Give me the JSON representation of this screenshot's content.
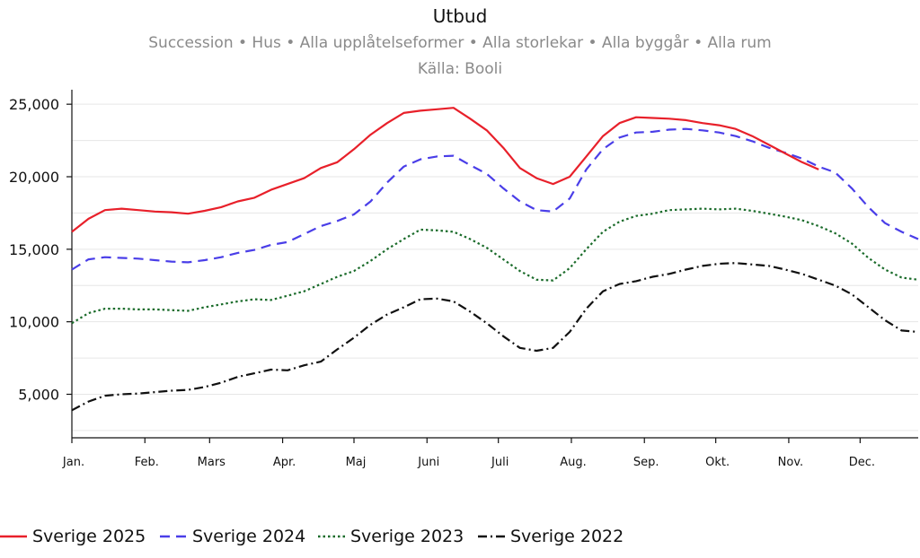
{
  "header": {
    "title": "Utbud",
    "subtitle": "Succession • Hus • Alla upplåtelseformer • Alla storlekar • Alla byggår • Alla rum",
    "source": "Källa: Booli"
  },
  "chart_data": {
    "type": "line",
    "title": "Utbud",
    "xlabel": "",
    "ylabel": "",
    "ylim": [
      2000,
      26000
    ],
    "x_range": [
      1,
      52
    ],
    "yticks": [
      5000,
      10000,
      15000,
      20000,
      25000
    ],
    "ytick_labels": [
      "5,000",
      "10,000",
      "15,000",
      "20,000",
      "25,000"
    ],
    "xticks": [
      {
        "label": "Jan.",
        "week": 1
      },
      {
        "label": "Feb.",
        "week": 5.4
      },
      {
        "label": "Mars",
        "week": 9.3
      },
      {
        "label": "Apr.",
        "week": 13.7
      },
      {
        "label": "Maj",
        "week": 18
      },
      {
        "label": "Juni",
        "week": 22.4
      },
      {
        "label": "Juli",
        "week": 26.7
      },
      {
        "label": "Aug.",
        "week": 31.1
      },
      {
        "label": "Sep.",
        "week": 35.5
      },
      {
        "label": "Okt.",
        "week": 39.8
      },
      {
        "label": "Nov.",
        "week": 44.2
      },
      {
        "label": "Dec.",
        "week": 48.5
      }
    ],
    "grid": "horizontal",
    "legend_position": "bottom",
    "series": [
      {
        "name": "Sverige 2025",
        "color": "#e8202a",
        "dash": "solid",
        "x": [
          1,
          2,
          3,
          4,
          5,
          6,
          7,
          8,
          9,
          10,
          11,
          12,
          13,
          14,
          15,
          16,
          17,
          18,
          19,
          20,
          21,
          22,
          23,
          24,
          25,
          26,
          27,
          28,
          29,
          30,
          31,
          32,
          33,
          34,
          35,
          36,
          37,
          38,
          39,
          40,
          41,
          42,
          43,
          44,
          45,
          46
        ],
        "values": [
          16200,
          17100,
          17700,
          17800,
          17700,
          17600,
          17550,
          17450,
          17650,
          17900,
          18300,
          18550,
          19100,
          19500,
          19900,
          20600,
          21000,
          21900,
          22900,
          23700,
          24400,
          24550,
          24650,
          24750,
          24000,
          23200,
          22000,
          20600,
          19900,
          19500,
          20000,
          21400,
          22800,
          23700,
          24100,
          24050,
          24000,
          23900,
          23700,
          23550,
          23300,
          22800,
          22200,
          21600,
          21000,
          20500
        ]
      },
      {
        "name": "Sverige 2024",
        "color": "#4a3ee8",
        "dash": "dashed",
        "x": [
          1,
          2,
          3,
          4,
          5,
          6,
          7,
          8,
          9,
          10,
          11,
          12,
          13,
          14,
          15,
          16,
          17,
          18,
          19,
          20,
          21,
          22,
          23,
          24,
          25,
          26,
          27,
          28,
          29,
          30,
          31,
          32,
          33,
          34,
          35,
          36,
          37,
          38,
          39,
          40,
          41,
          42,
          43,
          44,
          45,
          46,
          47,
          48,
          49,
          50,
          51,
          52
        ],
        "values": [
          13600,
          14300,
          14450,
          14400,
          14350,
          14250,
          14150,
          14100,
          14250,
          14450,
          14750,
          14950,
          15300,
          15500,
          16050,
          16600,
          16950,
          17400,
          18300,
          19600,
          20700,
          21200,
          21400,
          21450,
          20800,
          20200,
          19200,
          18300,
          17700,
          17600,
          18500,
          20500,
          21900,
          22700,
          23050,
          23100,
          23250,
          23300,
          23200,
          23050,
          22800,
          22450,
          22000,
          21650,
          21250,
          20700,
          20300,
          19200,
          17900,
          16800,
          16200,
          15700
        ]
      },
      {
        "name": "Sverige 2023",
        "color": "#1a6b2a",
        "dash": "dotted",
        "x": [
          1,
          2,
          3,
          4,
          5,
          6,
          7,
          8,
          9,
          10,
          11,
          12,
          13,
          14,
          15,
          16,
          17,
          18,
          19,
          20,
          21,
          22,
          23,
          24,
          25,
          26,
          27,
          28,
          29,
          30,
          31,
          32,
          33,
          34,
          35,
          36,
          37,
          38,
          39,
          40,
          41,
          42,
          43,
          44,
          45,
          46,
          47,
          48,
          49,
          50,
          51,
          52
        ],
        "values": [
          9900,
          10600,
          10900,
          10900,
          10850,
          10850,
          10800,
          10750,
          11000,
          11200,
          11400,
          11550,
          11500,
          11800,
          12100,
          12600,
          13100,
          13500,
          14200,
          15000,
          15700,
          16350,
          16300,
          16200,
          15700,
          15100,
          14300,
          13500,
          12900,
          12850,
          13700,
          15000,
          16200,
          16900,
          17300,
          17450,
          17700,
          17750,
          17800,
          17750,
          17800,
          17650,
          17450,
          17250,
          17000,
          16600,
          16100,
          15400,
          14400,
          13600,
          13050,
          12900
        ]
      },
      {
        "name": "Sverige 2022",
        "color": "#111111",
        "dash": "dashdot",
        "x": [
          1,
          2,
          3,
          4,
          5,
          6,
          7,
          8,
          9,
          10,
          11,
          12,
          13,
          14,
          15,
          16,
          17,
          18,
          19,
          20,
          21,
          22,
          23,
          24,
          25,
          26,
          27,
          28,
          29,
          30,
          31,
          32,
          33,
          34,
          35,
          36,
          37,
          38,
          39,
          40,
          41,
          42,
          43,
          44,
          45,
          46,
          47,
          48,
          49,
          50,
          51,
          52
        ],
        "values": [
          3900,
          4500,
          4900,
          5000,
          5050,
          5150,
          5250,
          5300,
          5500,
          5800,
          6200,
          6450,
          6700,
          6650,
          7000,
          7250,
          8100,
          8900,
          9800,
          10500,
          11000,
          11550,
          11600,
          11400,
          10700,
          9900,
          9000,
          8200,
          8000,
          8200,
          9300,
          10900,
          12100,
          12600,
          12800,
          13100,
          13300,
          13600,
          13850,
          14000,
          14050,
          13950,
          13850,
          13600,
          13300,
          12900,
          12500,
          11900,
          11000,
          10100,
          9400,
          9300
        ]
      }
    ]
  }
}
